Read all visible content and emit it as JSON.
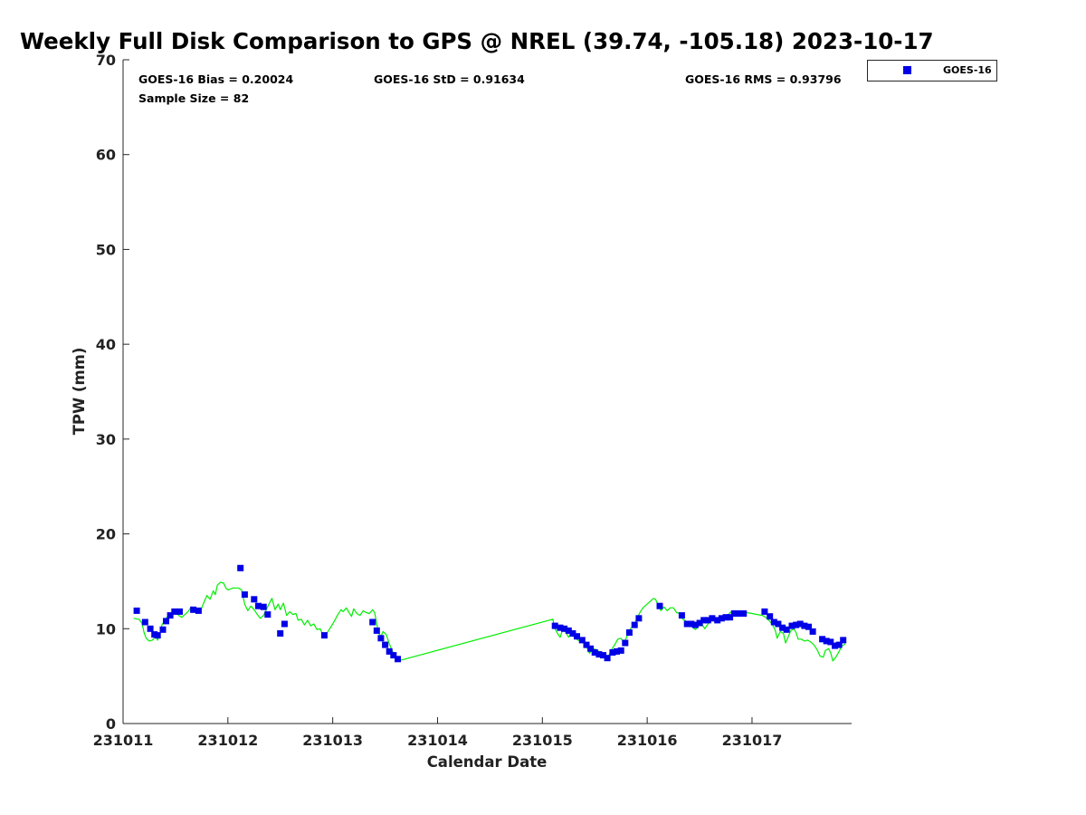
{
  "chart_data": {
    "type": "scatter",
    "title": "Weekly Full Disk Comparison to GPS @ NREL (39.74, -105.18) 2023-10-17",
    "xlabel": "Calendar Date",
    "ylabel": "TPW (mm)",
    "ylim": [
      0,
      70
    ],
    "xlim": [
      0,
      6.95
    ],
    "x_axis_note": "x in days since 231011 00Z",
    "x_ticks": [
      {
        "x": 0,
        "label": "231011"
      },
      {
        "x": 1,
        "label": "231012"
      },
      {
        "x": 2,
        "label": "231013"
      },
      {
        "x": 3,
        "label": "231014"
      },
      {
        "x": 4,
        "label": "231015"
      },
      {
        "x": 5,
        "label": "231016"
      },
      {
        "x": 6,
        "label": "231017"
      }
    ],
    "y_ticks": [
      0,
      10,
      20,
      30,
      40,
      50,
      60,
      70
    ],
    "grid": false,
    "legend": {
      "position": "top-right, outside plot",
      "entries": [
        "GOES-16"
      ]
    },
    "stats": {
      "bias": "GOES-16 Bias = 0.20024",
      "std": "GOES-16 StD = 0.91634",
      "rms": "GOES-16 RMS = 0.93796",
      "sample": "Sample Size = 82"
    },
    "colors": {
      "goes16": "#0000e6",
      "gps": "#00ee00"
    },
    "series": [
      {
        "name": "GOES-16",
        "kind": "markers",
        "points": [
          [
            0.13,
            11.9
          ],
          [
            0.21,
            10.7
          ],
          [
            0.26,
            10.0
          ],
          [
            0.3,
            9.4
          ],
          [
            0.33,
            9.3
          ],
          [
            0.38,
            9.9
          ],
          [
            0.41,
            10.8
          ],
          [
            0.45,
            11.4
          ],
          [
            0.49,
            11.8
          ],
          [
            0.54,
            11.8
          ],
          [
            0.67,
            12.0
          ],
          [
            0.72,
            11.9
          ],
          [
            1.12,
            16.4
          ],
          [
            1.16,
            13.6
          ],
          [
            1.25,
            13.1
          ],
          [
            1.29,
            12.4
          ],
          [
            1.34,
            12.3
          ],
          [
            1.38,
            11.5
          ],
          [
            1.5,
            9.5
          ],
          [
            1.54,
            10.5
          ],
          [
            1.92,
            9.3
          ],
          [
            2.38,
            10.7
          ],
          [
            2.42,
            9.8
          ],
          [
            2.46,
            9.0
          ],
          [
            2.5,
            8.3
          ],
          [
            2.54,
            7.6
          ],
          [
            2.58,
            7.2
          ],
          [
            2.62,
            6.8
          ],
          [
            4.12,
            10.3
          ],
          [
            4.17,
            10.1
          ],
          [
            4.21,
            10.0
          ],
          [
            4.25,
            9.8
          ],
          [
            4.29,
            9.5
          ],
          [
            4.33,
            9.2
          ],
          [
            4.38,
            8.8
          ],
          [
            4.42,
            8.3
          ],
          [
            4.46,
            7.9
          ],
          [
            4.5,
            7.5
          ],
          [
            4.54,
            7.3
          ],
          [
            4.58,
            7.2
          ],
          [
            4.62,
            6.9
          ],
          [
            4.67,
            7.5
          ],
          [
            4.71,
            7.6
          ],
          [
            4.75,
            7.7
          ],
          [
            4.79,
            8.5
          ],
          [
            4.83,
            9.6
          ],
          [
            4.88,
            10.4
          ],
          [
            4.92,
            11.1
          ],
          [
            5.12,
            12.4
          ],
          [
            5.33,
            11.4
          ],
          [
            5.38,
            10.5
          ],
          [
            5.42,
            10.5
          ],
          [
            5.46,
            10.4
          ],
          [
            5.5,
            10.6
          ],
          [
            5.54,
            10.9
          ],
          [
            5.58,
            10.9
          ],
          [
            5.62,
            11.1
          ],
          [
            5.67,
            10.9
          ],
          [
            5.71,
            11.1
          ],
          [
            5.75,
            11.2
          ],
          [
            5.79,
            11.2
          ],
          [
            5.83,
            11.6
          ],
          [
            5.88,
            11.6
          ],
          [
            5.92,
            11.6
          ],
          [
            6.12,
            11.8
          ],
          [
            6.17,
            11.3
          ],
          [
            6.21,
            10.7
          ],
          [
            6.25,
            10.5
          ],
          [
            6.29,
            10.1
          ],
          [
            6.33,
            9.9
          ],
          [
            6.38,
            10.3
          ],
          [
            6.42,
            10.4
          ],
          [
            6.46,
            10.5
          ],
          [
            6.5,
            10.3
          ],
          [
            6.54,
            10.2
          ],
          [
            6.58,
            9.7
          ],
          [
            6.67,
            8.9
          ],
          [
            6.71,
            8.7
          ],
          [
            6.75,
            8.6
          ],
          [
            6.79,
            8.2
          ],
          [
            6.83,
            8.3
          ],
          [
            6.87,
            8.8
          ]
        ]
      },
      {
        "name": "",
        "kind": "line",
        "points": [
          [
            0.1,
            11.1
          ],
          [
            0.15,
            11.0
          ],
          [
            0.18,
            10.6
          ],
          [
            0.2,
            9.6
          ],
          [
            0.22,
            9.0
          ],
          [
            0.25,
            8.7
          ],
          [
            0.28,
            8.8
          ],
          [
            0.31,
            9.2
          ],
          [
            0.33,
            8.8
          ],
          [
            0.35,
            9.4
          ],
          [
            0.37,
            10.4
          ],
          [
            0.4,
            10.9
          ],
          [
            0.43,
            11.4
          ],
          [
            0.47,
            11.6
          ],
          [
            0.5,
            11.9
          ],
          [
            0.53,
            11.4
          ],
          [
            0.56,
            11.2
          ],
          [
            0.58,
            11.4
          ],
          [
            0.62,
            11.8
          ],
          [
            0.65,
            12.3
          ],
          [
            0.68,
            12.1
          ],
          [
            0.72,
            11.7
          ],
          [
            0.75,
            12.2
          ],
          [
            0.78,
            13.0
          ],
          [
            0.8,
            13.5
          ],
          [
            0.83,
            13.1
          ],
          [
            0.86,
            14.0
          ],
          [
            0.88,
            13.6
          ],
          [
            0.9,
            14.6
          ],
          [
            0.93,
            14.9
          ],
          [
            0.96,
            14.8
          ],
          [
            0.98,
            14.3
          ],
          [
            1.0,
            14.1
          ],
          [
            1.05,
            14.3
          ],
          [
            1.1,
            14.3
          ],
          [
            1.13,
            14.1
          ],
          [
            1.16,
            12.6
          ],
          [
            1.19,
            11.9
          ],
          [
            1.22,
            12.4
          ],
          [
            1.25,
            12.0
          ],
          [
            1.28,
            11.5
          ],
          [
            1.31,
            11.1
          ],
          [
            1.34,
            11.4
          ],
          [
            1.37,
            12.1
          ],
          [
            1.4,
            12.8
          ],
          [
            1.42,
            13.2
          ],
          [
            1.45,
            12.0
          ],
          [
            1.48,
            12.6
          ],
          [
            1.5,
            12.0
          ],
          [
            1.53,
            12.7
          ],
          [
            1.56,
            11.4
          ],
          [
            1.59,
            11.8
          ],
          [
            1.62,
            11.5
          ],
          [
            1.65,
            11.6
          ],
          [
            1.67,
            10.9
          ],
          [
            1.7,
            11.0
          ],
          [
            1.73,
            10.4
          ],
          [
            1.76,
            10.9
          ],
          [
            1.79,
            10.3
          ],
          [
            1.82,
            10.5
          ],
          [
            1.85,
            9.9
          ],
          [
            1.88,
            10.0
          ],
          [
            1.9,
            9.5
          ],
          [
            1.93,
            9.3
          ],
          [
            1.96,
            9.8
          ],
          [
            2.0,
            10.5
          ],
          [
            2.05,
            11.5
          ],
          [
            2.08,
            12.0
          ],
          [
            2.1,
            11.8
          ],
          [
            2.13,
            12.2
          ],
          [
            2.15,
            11.8
          ],
          [
            2.18,
            11.3
          ],
          [
            2.2,
            12.1
          ],
          [
            2.23,
            11.6
          ],
          [
            2.26,
            11.4
          ],
          [
            2.29,
            11.9
          ],
          [
            2.32,
            11.7
          ],
          [
            2.35,
            11.6
          ],
          [
            2.38,
            12.0
          ],
          [
            2.4,
            11.7
          ],
          [
            2.42,
            10.5
          ],
          [
            2.44,
            9.5
          ],
          [
            2.46,
            9.2
          ],
          [
            2.48,
            9.7
          ],
          [
            2.51,
            9.4
          ],
          [
            2.54,
            8.4
          ],
          [
            2.57,
            7.6
          ],
          [
            2.6,
            7.2
          ],
          [
            2.62,
            6.6
          ],
          [
            4.1,
            11.0
          ],
          [
            4.12,
            10.0
          ],
          [
            4.15,
            9.4
          ],
          [
            4.17,
            9.1
          ],
          [
            4.19,
            9.8
          ],
          [
            4.22,
            9.7
          ],
          [
            4.25,
            9.1
          ],
          [
            4.28,
            9.5
          ],
          [
            4.31,
            9.0
          ],
          [
            4.34,
            8.8
          ],
          [
            4.37,
            8.6
          ],
          [
            4.4,
            8.7
          ],
          [
            4.43,
            7.9
          ],
          [
            4.45,
            7.4
          ],
          [
            4.48,
            7.9
          ],
          [
            4.51,
            7.8
          ],
          [
            4.54,
            7.6
          ],
          [
            4.57,
            7.1
          ],
          [
            4.6,
            7.0
          ],
          [
            4.63,
            7.1
          ],
          [
            4.66,
            7.8
          ],
          [
            4.69,
            8.3
          ],
          [
            4.72,
            8.9
          ],
          [
            4.75,
            9.0
          ],
          [
            4.78,
            8.5
          ],
          [
            4.81,
            9.3
          ],
          [
            4.84,
            10.0
          ],
          [
            4.87,
            10.3
          ],
          [
            4.9,
            11.0
          ],
          [
            4.93,
            11.7
          ],
          [
            4.96,
            12.2
          ],
          [
            5.0,
            12.6
          ],
          [
            5.03,
            12.9
          ],
          [
            5.06,
            13.2
          ],
          [
            5.08,
            13.1
          ],
          [
            5.1,
            12.6
          ],
          [
            5.13,
            11.9
          ],
          [
            5.16,
            12.3
          ],
          [
            5.19,
            11.9
          ],
          [
            5.22,
            12.2
          ],
          [
            5.25,
            12.2
          ],
          [
            5.28,
            11.7
          ],
          [
            5.31,
            11.6
          ],
          [
            5.34,
            11.0
          ],
          [
            5.37,
            10.8
          ],
          [
            5.4,
            10.5
          ],
          [
            5.43,
            10.2
          ],
          [
            5.46,
            9.9
          ],
          [
            5.49,
            10.3
          ],
          [
            5.52,
            10.5
          ],
          [
            5.55,
            10.0
          ],
          [
            5.58,
            10.5
          ],
          [
            5.61,
            10.9
          ],
          [
            5.64,
            10.9
          ],
          [
            5.67,
            11.1
          ],
          [
            5.7,
            11.0
          ],
          [
            5.73,
            11.4
          ],
          [
            5.76,
            11.2
          ],
          [
            5.79,
            11.7
          ],
          [
            5.82,
            11.8
          ],
          [
            5.86,
            11.8
          ],
          [
            5.9,
            11.7
          ],
          [
            5.95,
            11.7
          ],
          [
            6.0,
            11.6
          ],
          [
            6.05,
            11.5
          ],
          [
            6.1,
            11.4
          ],
          [
            6.13,
            11.2
          ],
          [
            6.16,
            10.9
          ],
          [
            6.19,
            10.5
          ],
          [
            6.22,
            9.9
          ],
          [
            6.24,
            9.0
          ],
          [
            6.27,
            9.7
          ],
          [
            6.3,
            9.5
          ],
          [
            6.32,
            8.5
          ],
          [
            6.34,
            9.0
          ],
          [
            6.37,
            9.8
          ],
          [
            6.4,
            10.0
          ],
          [
            6.42,
            9.6
          ],
          [
            6.44,
            8.9
          ],
          [
            6.47,
            8.9
          ],
          [
            6.5,
            8.7
          ],
          [
            6.53,
            8.8
          ],
          [
            6.56,
            8.6
          ],
          [
            6.59,
            8.3
          ],
          [
            6.62,
            7.8
          ],
          [
            6.65,
            7.1
          ],
          [
            6.68,
            7.0
          ],
          [
            6.7,
            7.7
          ],
          [
            6.73,
            7.9
          ],
          [
            6.75,
            7.5
          ],
          [
            6.77,
            6.6
          ],
          [
            6.8,
            7.0
          ],
          [
            6.83,
            7.6
          ],
          [
            6.86,
            8.2
          ],
          [
            6.89,
            8.4
          ]
        ]
      }
    ]
  }
}
